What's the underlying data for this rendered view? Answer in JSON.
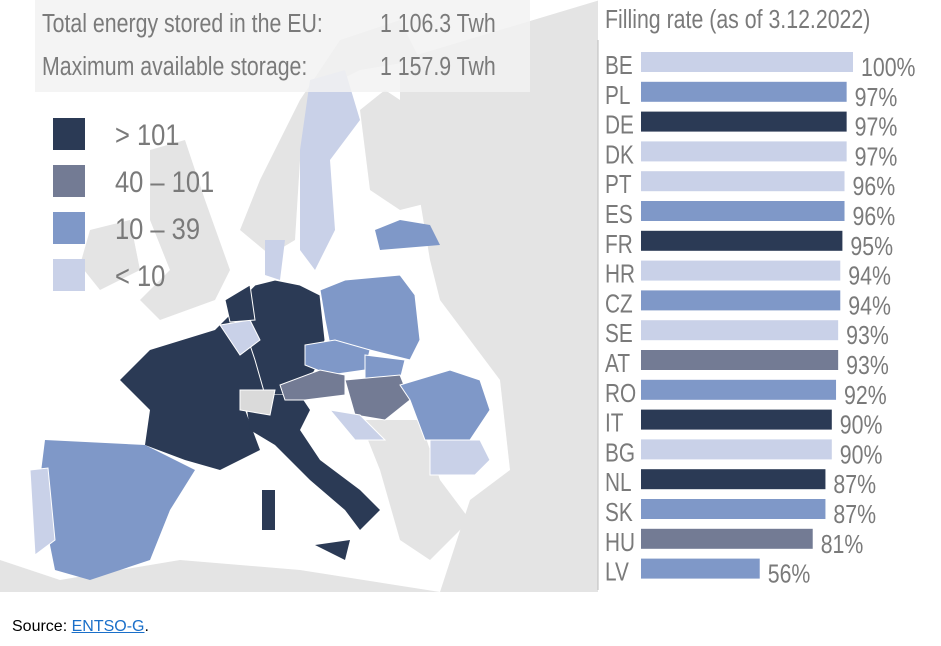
{
  "header": {
    "total_label": "Total energy stored in the EU:",
    "total_value": "1 106.3 Twh",
    "max_label": "Maximum available storage:",
    "max_value": "1 157.9 Twh"
  },
  "legend": [
    {
      "label": "> 101",
      "color": "#2b3a55"
    },
    {
      "label": "40 – 101",
      "color": "#737b94"
    },
    {
      "label": "10 – 39",
      "color": "#7f98c8"
    },
    {
      "label": "< 10",
      "color": "#c9d1e8"
    }
  ],
  "chart_data": {
    "type": "bar",
    "orientation": "horizontal",
    "title": "Filling rate (as of 3.12.2022)",
    "xlim": [
      0,
      100
    ],
    "unit": "%",
    "categories": [
      "BE",
      "PL",
      "DE",
      "DK",
      "PT",
      "ES",
      "FR",
      "HR",
      "CZ",
      "SE",
      "AT",
      "RO",
      "IT",
      "BG",
      "NL",
      "SK",
      "HU",
      "LV"
    ],
    "values": [
      100,
      97,
      97,
      97,
      96,
      96,
      95,
      94,
      94,
      93,
      93,
      92,
      90,
      90,
      87,
      87,
      81,
      56
    ],
    "labels": [
      "100%",
      "97%",
      "97%",
      "97%",
      "96%",
      "96%",
      "95%",
      "94%",
      "94%",
      "93%",
      "93%",
      "92%",
      "90%",
      "90%",
      "87%",
      "87%",
      "81%",
      "56%"
    ],
    "storage_class": [
      "< 10",
      "10 – 39",
      "> 101",
      "< 10",
      "< 10",
      "10 – 39",
      "> 101",
      "< 10",
      "10 – 39",
      "< 10",
      "40 – 101",
      "10 – 39",
      "> 101",
      "< 10",
      "> 101",
      "10 – 39",
      "40 – 101",
      "10 – 39"
    ]
  },
  "source": {
    "prefix": "Source: ",
    "link": "ENTSO-G",
    "suffix": "."
  }
}
